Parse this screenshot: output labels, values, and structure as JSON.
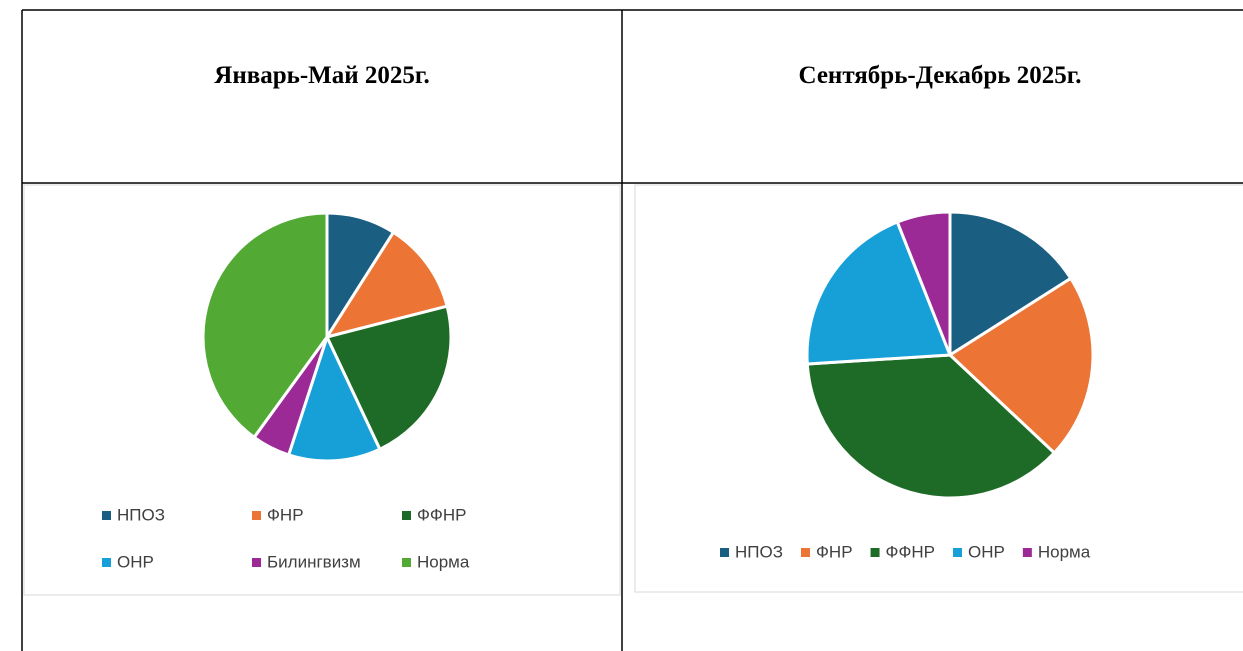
{
  "table": {
    "headers": [
      "Январь-Май 2025г.",
      "Сентябрь-Декабрь 2025г."
    ]
  },
  "chart_data": [
    {
      "type": "pie",
      "categories": [
        "НПОЗ",
        "ФНР",
        "ФФНР",
        "ОНР",
        "Билингвизм",
        "Норма"
      ],
      "values": [
        9,
        12,
        22,
        12,
        5,
        40
      ],
      "colors": [
        "#1a5e82",
        "#ec7434",
        "#1e6b27",
        "#17a0d8",
        "#9c2a96",
        "#52a934"
      ]
    },
    {
      "type": "pie",
      "categories": [
        "НПОЗ",
        "ФНР",
        "ФФНР",
        "ОНР",
        "Норма"
      ],
      "values": [
        16,
        21,
        37,
        20,
        6
      ],
      "colors": [
        "#1a5e82",
        "#ec7434",
        "#1e6b27",
        "#17a0d8",
        "#9c2a96"
      ]
    }
  ]
}
